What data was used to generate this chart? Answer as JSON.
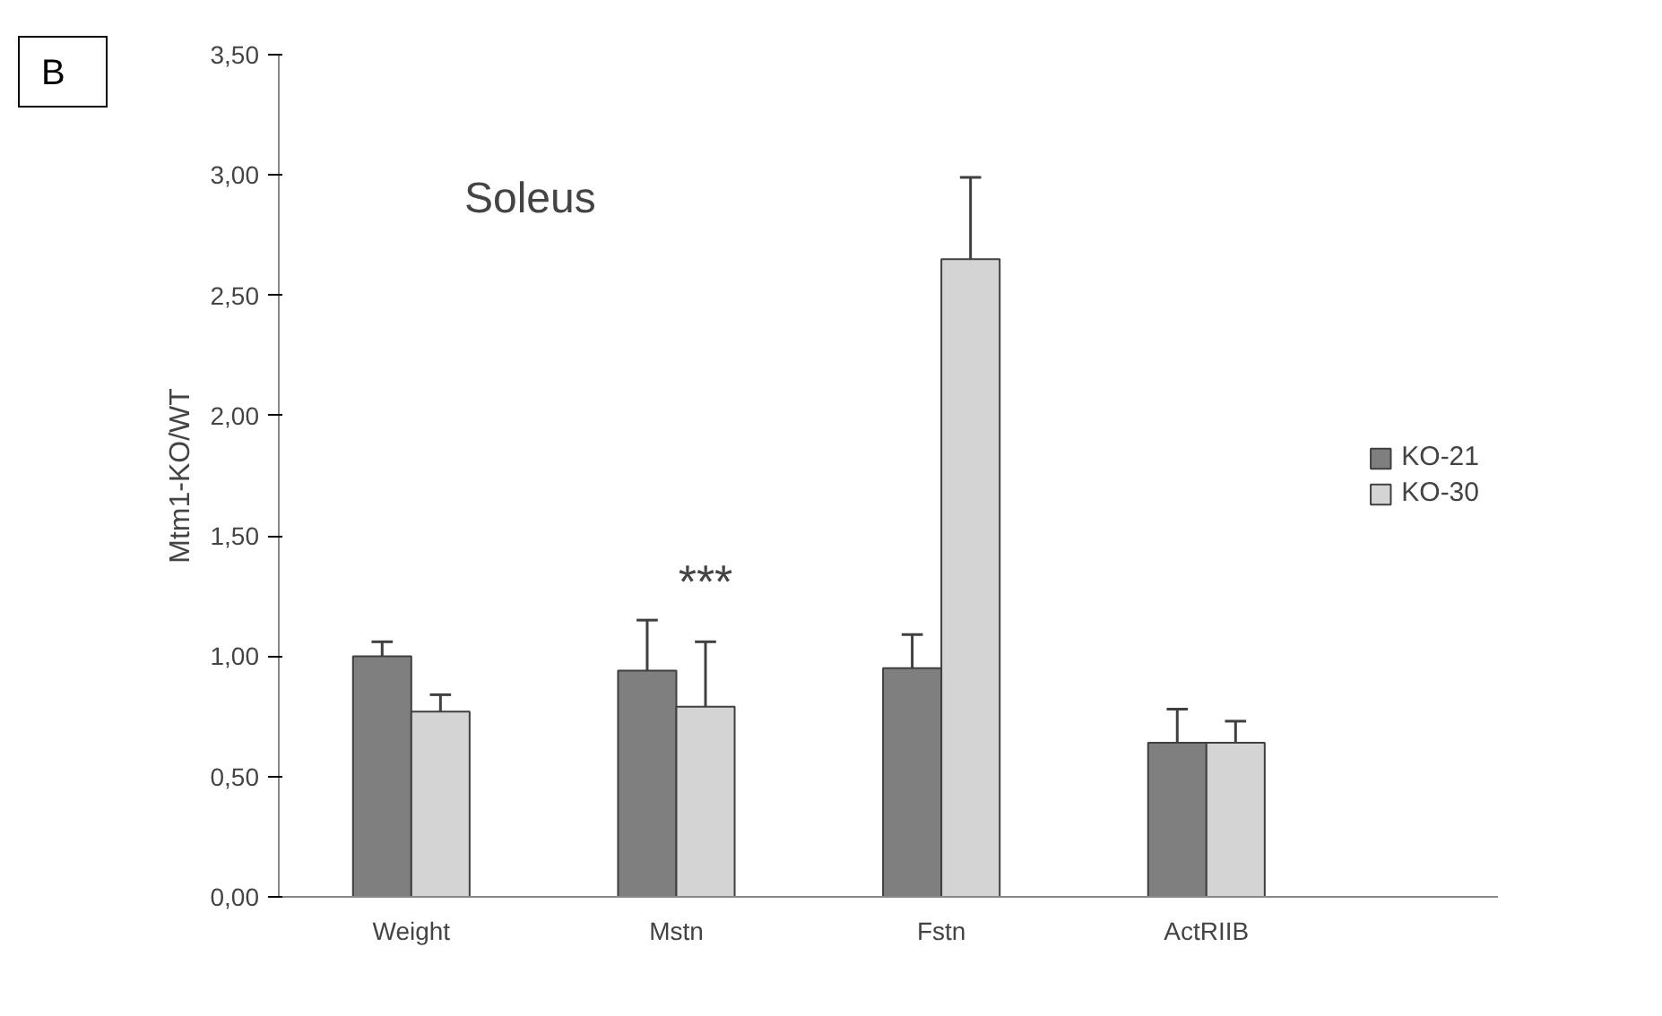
{
  "chart_data": {
    "type": "bar",
    "ylabel": "Mtm1-KO/WT",
    "categories": [
      "Weight",
      "Mstn",
      "Fstn",
      "ActRIIB"
    ],
    "series": [
      {
        "name": "KO-21",
        "color": "#7f7f7f",
        "values": [
          1.0,
          0.94,
          0.95,
          0.64
        ],
        "errors": [
          0.06,
          0.21,
          0.14,
          0.14
        ]
      },
      {
        "name": "KO-30",
        "color": "#d4d4d4",
        "values": [
          0.77,
          0.79,
          2.65,
          0.64
        ],
        "errors": [
          0.07,
          0.27,
          0.34,
          0.09
        ]
      }
    ],
    "ylim": [
      0,
      3.5
    ],
    "yticks": [
      {
        "value": 0,
        "label": "0,00"
      },
      {
        "value": 0.5,
        "label": "0,50"
      },
      {
        "value": 1,
        "label": "1,00"
      },
      {
        "value": 1.5,
        "label": "1,50"
      },
      {
        "value": 2,
        "label": "2,00"
      },
      {
        "value": 2.5,
        "label": "2,50"
      },
      {
        "value": 3,
        "label": "3,00"
      },
      {
        "value": 3.5,
        "label": "3,50"
      }
    ],
    "grid": false,
    "legend": "right",
    "annotations": [
      "B",
      "Soleus",
      "***"
    ]
  }
}
